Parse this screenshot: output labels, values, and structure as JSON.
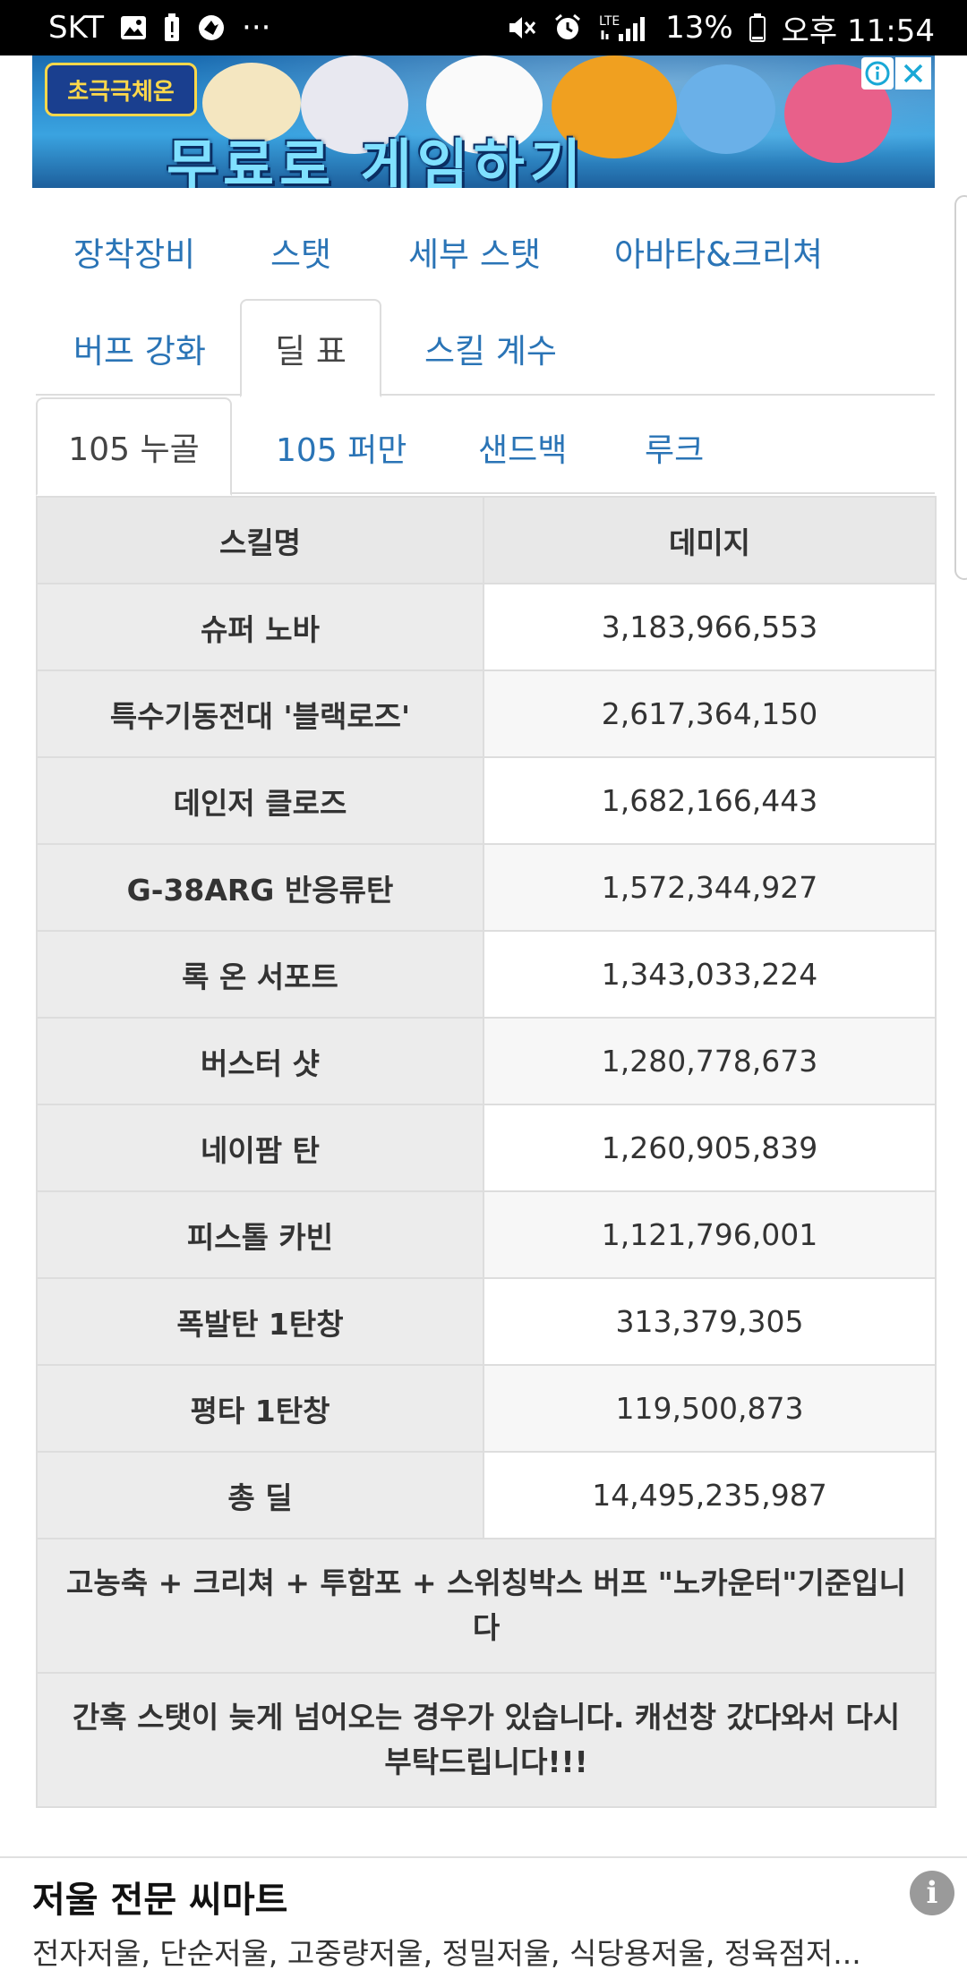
{
  "status_bar": {
    "carrier": "SKT",
    "dots": "···",
    "network": "LTE",
    "battery": "13%",
    "time": "오후 11:54"
  },
  "ad_banner": {
    "logo_text": "초극극체온",
    "headline": "무료로 게임하기"
  },
  "tabs": {
    "row1": [
      "장착장비",
      "스탯",
      "세부 스탯",
      "아바타&크리쳐"
    ],
    "row2": [
      "버프 강화",
      "딜 표",
      "스킬 계수"
    ],
    "active": "딜 표"
  },
  "subtabs": {
    "items": [
      "105 누골",
      "105 퍼만",
      "샌드백",
      "루크"
    ],
    "active": "105 누골"
  },
  "table": {
    "headers": [
      "스킬명",
      "데미지"
    ],
    "rows": [
      {
        "skill": "슈퍼 노바",
        "damage": "3,183,966,553"
      },
      {
        "skill": "특수기동전대 '블랙로즈'",
        "damage": "2,617,364,150"
      },
      {
        "skill": "데인저 클로즈",
        "damage": "1,682,166,443"
      },
      {
        "skill": "G-38ARG 반응류탄",
        "damage": "1,572,344,927"
      },
      {
        "skill": "록 온 서포트",
        "damage": "1,343,033,224"
      },
      {
        "skill": "버스터 샷",
        "damage": "1,280,778,673"
      },
      {
        "skill": "네이팜 탄",
        "damage": "1,260,905,839"
      },
      {
        "skill": "피스톨 카빈",
        "damage": "1,121,796,001"
      },
      {
        "skill": "폭발탄 1탄창",
        "damage": "313,379,305"
      },
      {
        "skill": "평타 1탄창",
        "damage": "119,500,873"
      },
      {
        "skill": "총 딜",
        "damage": "14,495,235,987"
      }
    ],
    "note1": "고농축 + 크리쳐 + 투함포 + 스위칭박스 버프 \"노카운터\"기준입니다",
    "note2": "간혹 스탯이 늦게 넘어오는 경우가 있습니다. 캐선창 갔다와서 다시 부탁드립니다!!!"
  },
  "bottom_ad": {
    "title": "저울 전문 씨마트",
    "description": "전자저울, 단순저울, 고중량저울, 정밀저울, 식당용저울, 정육점저...",
    "info_glyph": "i"
  }
}
